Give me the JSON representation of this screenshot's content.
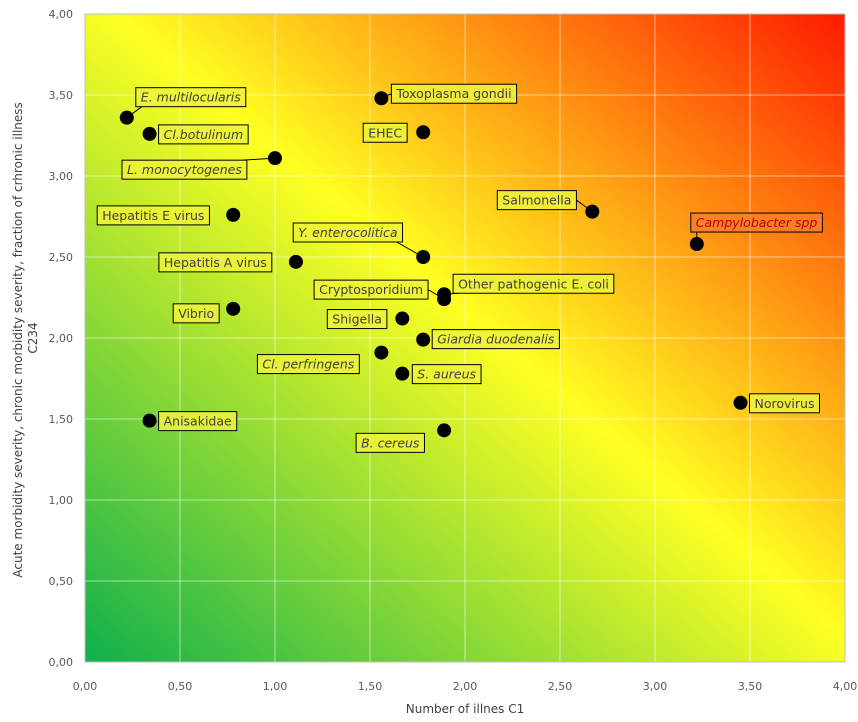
{
  "chart_data": {
    "type": "scatter",
    "xlabel": "Number of illnes C1",
    "ylabel_lines": [
      "Acute morbidity severity, chronic morbidity severity, fraction of crhronic illness",
      "C234"
    ],
    "xlim": [
      0,
      4
    ],
    "ylim": [
      0,
      4
    ],
    "x_ticks": [
      "0,00",
      "0,50",
      "1,00",
      "1,50",
      "2,00",
      "2,50",
      "3,00",
      "3,50",
      "4,00"
    ],
    "y_ticks": [
      "0,00",
      "0,50",
      "1,00",
      "1,50",
      "2,00",
      "2,50",
      "3,00",
      "3,50",
      "4,00"
    ],
    "grid": true,
    "legend": "none",
    "background": "diagonal gradient green (low) to yellow to red (high)",
    "colors": {
      "gradient_low": "#0fb04c",
      "gradient_mid": "#ffff22",
      "gradient_high": "#ff1a00",
      "marker": "#000000",
      "label_fill": "#eef23a",
      "label_fill_red": "#f77f2a",
      "label_text": "#404040",
      "label_text_red": "#c00000"
    },
    "points": [
      {
        "label": "E. multilocularis",
        "italic": true,
        "x": 0.22,
        "y": 3.36
      },
      {
        "label": "Cl.botulinum",
        "italic": true,
        "x": 0.34,
        "y": 3.26
      },
      {
        "label": "L. monocytogenes",
        "italic": true,
        "x": 1.0,
        "y": 3.11
      },
      {
        "label": "Hepatitis E virus",
        "italic": false,
        "x": 0.78,
        "y": 2.76
      },
      {
        "label": "Hepatitis A virus",
        "italic": false,
        "x": 1.11,
        "y": 2.47
      },
      {
        "label": "Y. enterocolitica",
        "italic": true,
        "x": 1.78,
        "y": 2.5
      },
      {
        "label": "Vibrio",
        "italic": false,
        "x": 0.78,
        "y": 2.18
      },
      {
        "label": "Toxoplasma gondii",
        "italic": false,
        "x": 1.56,
        "y": 3.48
      },
      {
        "label": "EHEC",
        "italic": false,
        "x": 1.78,
        "y": 3.27
      },
      {
        "label": "Salmonella",
        "italic": false,
        "x": 2.67,
        "y": 2.78
      },
      {
        "label": "Campylobacter spp",
        "italic": true,
        "red_text": true,
        "x": 3.22,
        "y": 2.58
      },
      {
        "label": "Other pathogenic E. coli",
        "italic": false,
        "x": 1.89,
        "y": 2.27
      },
      {
        "label": "Cryptosporidium",
        "italic": false,
        "x": 1.89,
        "y": 2.24
      },
      {
        "label": "Shigella",
        "italic": false,
        "x": 1.67,
        "y": 2.12
      },
      {
        "label": "Giardia duodenalis",
        "italic": true,
        "x": 1.78,
        "y": 1.99
      },
      {
        "label": "Cl. perfringens",
        "italic": true,
        "x": 1.56,
        "y": 1.91
      },
      {
        "label": "S. aureus",
        "italic": true,
        "x": 1.67,
        "y": 1.78
      },
      {
        "label": "Norovirus",
        "italic": false,
        "x": 3.45,
        "y": 1.6
      },
      {
        "label": "Anisakidae",
        "italic": false,
        "x": 0.34,
        "y": 1.49
      },
      {
        "label": "B. cereus",
        "italic": true,
        "x": 1.89,
        "y": 1.43
      }
    ]
  }
}
